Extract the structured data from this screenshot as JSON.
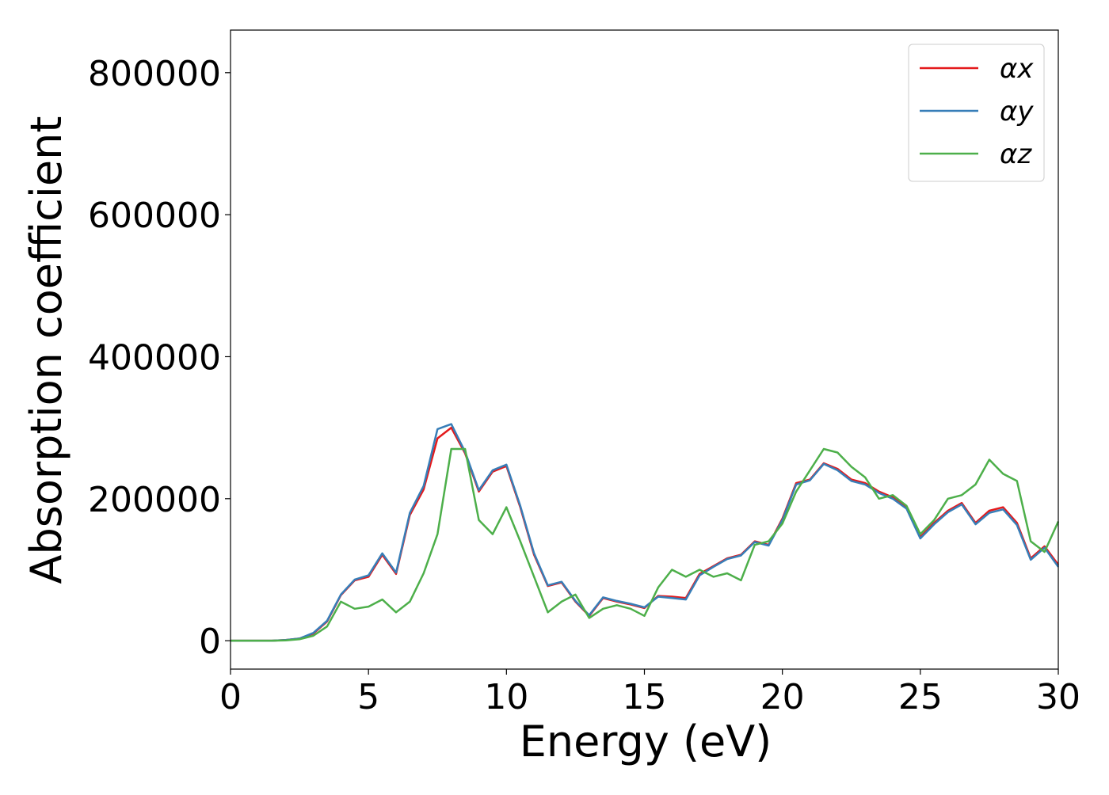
{
  "chart_data": {
    "type": "line",
    "xlabel": "Energy (eV)",
    "ylabel": "Absorption coefficient",
    "x": [
      0,
      0.5,
      1,
      1.5,
      2,
      2.5,
      3,
      3.5,
      4,
      4.5,
      5,
      5.5,
      6,
      6.5,
      7,
      7.5,
      8,
      8.5,
      9,
      9.5,
      10,
      10.5,
      11,
      11.5,
      12,
      12.5,
      13,
      13.5,
      14,
      14.5,
      15,
      15.5,
      16,
      16.5,
      17,
      17.5,
      18,
      18.5,
      19,
      19.5,
      20,
      20.5,
      21,
      21.5,
      22,
      22.5,
      23,
      23.5,
      24,
      24.5,
      25,
      25.5,
      26,
      26.5,
      27,
      27.5,
      28,
      28.5,
      29,
      29.5,
      30
    ],
    "series": [
      {
        "name": "αx",
        "color": "#e41a1c",
        "values": [
          0,
          0,
          0,
          0,
          1000,
          3000,
          10000,
          27000,
          64000,
          85000,
          90000,
          121000,
          94000,
          177000,
          213000,
          285000,
          300000,
          264000,
          210000,
          238000,
          246000,
          188000,
          121000,
          77000,
          82000,
          55000,
          35000,
          60000,
          55000,
          51000,
          46000,
          63000,
          62000,
          60000,
          94000,
          105000,
          116000,
          121000,
          140000,
          135000,
          172000,
          222000,
          227000,
          250000,
          242000,
          227000,
          222000,
          210000,
          202000,
          188000,
          146000,
          166000,
          183000,
          194000,
          166000,
          183000,
          188000,
          166000,
          116000,
          133000,
          107000
        ]
      },
      {
        "name": "αy",
        "color": "#377eb8",
        "values": [
          0,
          0,
          0,
          0,
          1000,
          3000,
          11000,
          28000,
          65000,
          86000,
          92000,
          123000,
          96000,
          180000,
          218000,
          298000,
          305000,
          266000,
          212000,
          240000,
          248000,
          190000,
          123000,
          78000,
          83000,
          56000,
          36000,
          61000,
          56000,
          52000,
          47000,
          62000,
          60000,
          58000,
          92000,
          104000,
          115000,
          120000,
          139000,
          134000,
          170000,
          220000,
          226000,
          249000,
          240000,
          225000,
          220000,
          208000,
          200000,
          186000,
          144000,
          164000,
          181000,
          192000,
          164000,
          180000,
          185000,
          163000,
          114000,
          131000,
          104000
        ]
      },
      {
        "name": "αz",
        "color": "#4daf4a",
        "values": [
          0,
          0,
          0,
          0,
          500,
          2000,
          7000,
          20000,
          55000,
          45000,
          48000,
          58000,
          40000,
          55000,
          95000,
          150000,
          270000,
          270000,
          170000,
          150000,
          188000,
          140000,
          90000,
          40000,
          55000,
          65000,
          32000,
          45000,
          50000,
          45000,
          35000,
          75000,
          100000,
          90000,
          100000,
          90000,
          95000,
          85000,
          135000,
          140000,
          165000,
          210000,
          240000,
          270000,
          265000,
          245000,
          230000,
          200000,
          205000,
          190000,
          150000,
          170000,
          200000,
          205000,
          220000,
          255000,
          235000,
          225000,
          140000,
          125000,
          168000
        ]
      }
    ],
    "xlim": [
      0,
      30
    ],
    "xticks": [
      0,
      5,
      10,
      15,
      20,
      25,
      30
    ],
    "ylim": [
      -40000,
      860000
    ],
    "yticks": [
      0,
      200000,
      400000,
      600000,
      800000
    ],
    "grid": false,
    "legend": "upper right"
  }
}
